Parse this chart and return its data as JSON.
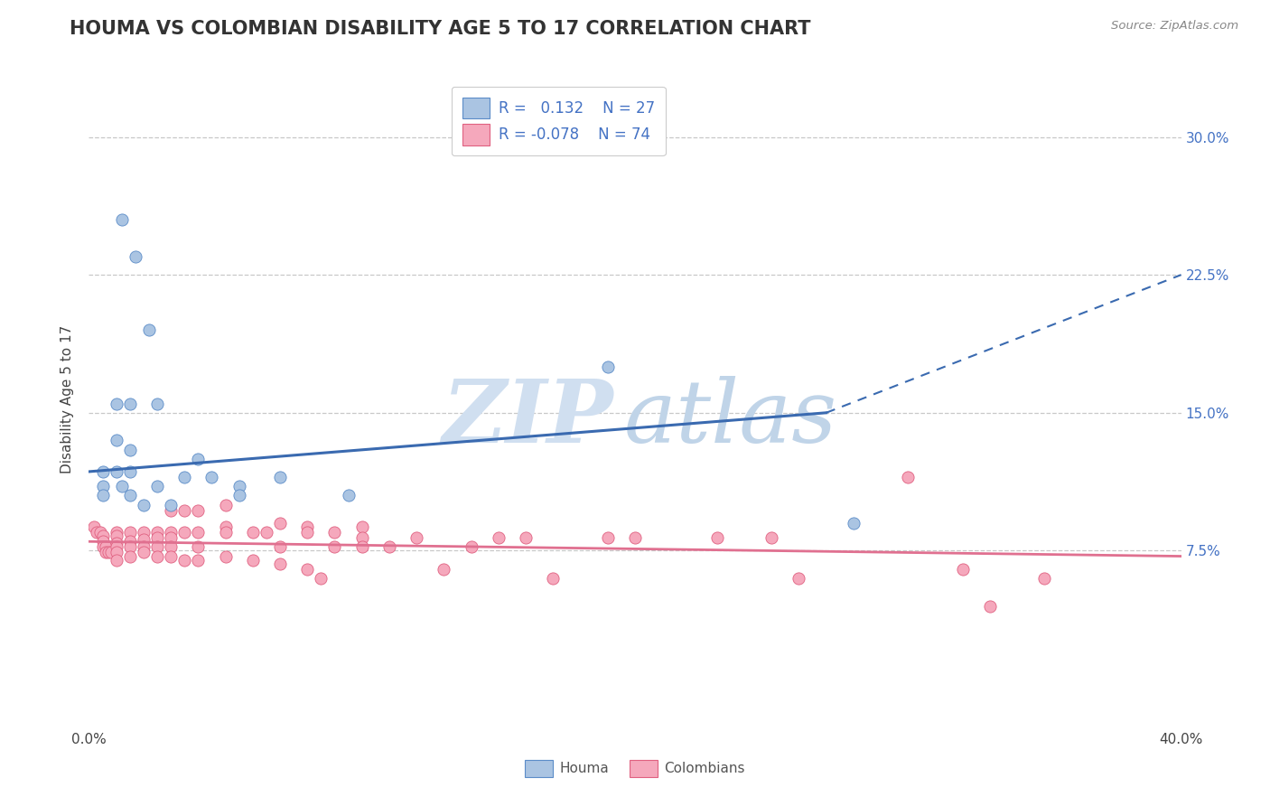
{
  "title": "HOUMA VS COLOMBIAN DISABILITY AGE 5 TO 17 CORRELATION CHART",
  "source": "Source: ZipAtlas.com",
  "ylabel": "Disability Age 5 to 17",
  "ytick_labels": [
    "7.5%",
    "15.0%",
    "22.5%",
    "30.0%"
  ],
  "ytick_values": [
    0.075,
    0.15,
    0.225,
    0.3
  ],
  "xlim": [
    0.0,
    0.4
  ],
  "ylim": [
    -0.02,
    0.335
  ],
  "houma_color": "#aac4e2",
  "colombian_color": "#f5a8bc",
  "houma_edge_color": "#5b8cc8",
  "colombian_edge_color": "#e06080",
  "houma_line_color": "#3a6ab0",
  "colombian_line_color": "#e07090",
  "houma_scatter": [
    [
      0.012,
      0.255
    ],
    [
      0.017,
      0.235
    ],
    [
      0.022,
      0.195
    ],
    [
      0.01,
      0.155
    ],
    [
      0.015,
      0.155
    ],
    [
      0.025,
      0.155
    ],
    [
      0.01,
      0.135
    ],
    [
      0.015,
      0.13
    ],
    [
      0.005,
      0.118
    ],
    [
      0.01,
      0.118
    ],
    [
      0.015,
      0.118
    ],
    [
      0.005,
      0.11
    ],
    [
      0.012,
      0.11
    ],
    [
      0.025,
      0.11
    ],
    [
      0.035,
      0.115
    ],
    [
      0.045,
      0.115
    ],
    [
      0.04,
      0.125
    ],
    [
      0.055,
      0.11
    ],
    [
      0.005,
      0.105
    ],
    [
      0.015,
      0.105
    ],
    [
      0.02,
      0.1
    ],
    [
      0.03,
      0.1
    ],
    [
      0.055,
      0.105
    ],
    [
      0.07,
      0.115
    ],
    [
      0.095,
      0.105
    ],
    [
      0.19,
      0.175
    ],
    [
      0.28,
      0.09
    ]
  ],
  "colombian_scatter": [
    [
      0.002,
      0.088
    ],
    [
      0.003,
      0.085
    ],
    [
      0.004,
      0.085
    ],
    [
      0.005,
      0.083
    ],
    [
      0.005,
      0.08
    ],
    [
      0.005,
      0.077
    ],
    [
      0.006,
      0.077
    ],
    [
      0.006,
      0.074
    ],
    [
      0.007,
      0.074
    ],
    [
      0.008,
      0.074
    ],
    [
      0.01,
      0.085
    ],
    [
      0.01,
      0.083
    ],
    [
      0.01,
      0.079
    ],
    [
      0.01,
      0.077
    ],
    [
      0.01,
      0.074
    ],
    [
      0.01,
      0.07
    ],
    [
      0.015,
      0.085
    ],
    [
      0.015,
      0.08
    ],
    [
      0.015,
      0.077
    ],
    [
      0.015,
      0.072
    ],
    [
      0.02,
      0.085
    ],
    [
      0.02,
      0.081
    ],
    [
      0.02,
      0.077
    ],
    [
      0.02,
      0.074
    ],
    [
      0.025,
      0.085
    ],
    [
      0.025,
      0.082
    ],
    [
      0.025,
      0.077
    ],
    [
      0.025,
      0.072
    ],
    [
      0.03,
      0.097
    ],
    [
      0.03,
      0.085
    ],
    [
      0.03,
      0.082
    ],
    [
      0.03,
      0.077
    ],
    [
      0.03,
      0.072
    ],
    [
      0.035,
      0.097
    ],
    [
      0.035,
      0.085
    ],
    [
      0.035,
      0.07
    ],
    [
      0.04,
      0.097
    ],
    [
      0.04,
      0.085
    ],
    [
      0.04,
      0.077
    ],
    [
      0.04,
      0.07
    ],
    [
      0.05,
      0.1
    ],
    [
      0.05,
      0.088
    ],
    [
      0.05,
      0.085
    ],
    [
      0.05,
      0.072
    ],
    [
      0.06,
      0.085
    ],
    [
      0.06,
      0.07
    ],
    [
      0.065,
      0.085
    ],
    [
      0.07,
      0.09
    ],
    [
      0.07,
      0.077
    ],
    [
      0.07,
      0.068
    ],
    [
      0.08,
      0.088
    ],
    [
      0.08,
      0.085
    ],
    [
      0.08,
      0.065
    ],
    [
      0.085,
      0.06
    ],
    [
      0.09,
      0.085
    ],
    [
      0.09,
      0.077
    ],
    [
      0.1,
      0.088
    ],
    [
      0.1,
      0.082
    ],
    [
      0.1,
      0.077
    ],
    [
      0.11,
      0.077
    ],
    [
      0.12,
      0.082
    ],
    [
      0.13,
      0.065
    ],
    [
      0.14,
      0.077
    ],
    [
      0.15,
      0.082
    ],
    [
      0.16,
      0.082
    ],
    [
      0.17,
      0.06
    ],
    [
      0.19,
      0.082
    ],
    [
      0.2,
      0.082
    ],
    [
      0.23,
      0.082
    ],
    [
      0.25,
      0.082
    ],
    [
      0.26,
      0.06
    ],
    [
      0.3,
      0.115
    ],
    [
      0.32,
      0.065
    ],
    [
      0.33,
      0.045
    ],
    [
      0.35,
      0.06
    ]
  ],
  "houma_trendline_solid": [
    [
      0.0,
      0.118
    ],
    [
      0.27,
      0.15
    ]
  ],
  "houma_trendline_dashed": [
    [
      0.27,
      0.15
    ],
    [
      0.4,
      0.225
    ]
  ],
  "colombian_trendline": [
    [
      0.0,
      0.08
    ],
    [
      0.4,
      0.072
    ]
  ],
  "background_color": "#ffffff",
  "grid_color": "#c8c8c8",
  "watermark_zip": "ZIP",
  "watermark_atlas": "atlas",
  "watermark_color_zip": "#d0dff0",
  "watermark_color_atlas": "#c0d4e8",
  "title_fontsize": 15,
  "axis_label_fontsize": 11,
  "tick_fontsize": 11,
  "legend_fontsize": 12
}
